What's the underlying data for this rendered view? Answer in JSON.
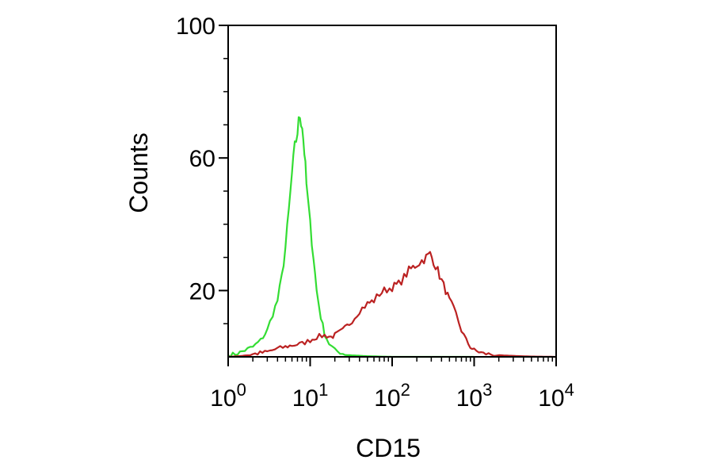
{
  "chart_data": {
    "type": "line",
    "title": "",
    "xlabel": "CD15",
    "ylabel": "Counts",
    "x_scale": "log",
    "xlim": [
      1,
      10000
    ],
    "ylim": [
      0,
      100
    ],
    "x_ticks": [
      {
        "base": "10",
        "exp": "0",
        "value": 1
      },
      {
        "base": "10",
        "exp": "1",
        "value": 10
      },
      {
        "base": "10",
        "exp": "2",
        "value": 100
      },
      {
        "base": "10",
        "exp": "3",
        "value": 1000
      },
      {
        "base": "10",
        "exp": "4",
        "value": 10000
      }
    ],
    "y_ticks": [
      {
        "label": "20",
        "value": 20
      },
      {
        "label": "60",
        "value": 60
      },
      {
        "label": "100",
        "value": 100
      }
    ],
    "grid": false,
    "legend": "none",
    "series": [
      {
        "color": "#33dd33",
        "points": [
          [
            1.0,
            0.5
          ],
          [
            1.3,
            1
          ],
          [
            1.6,
            2
          ],
          [
            2.0,
            3
          ],
          [
            2.5,
            5
          ],
          [
            3.0,
            8
          ],
          [
            3.5,
            13
          ],
          [
            4.0,
            17
          ],
          [
            4.5,
            24
          ],
          [
            5.0,
            33
          ],
          [
            5.5,
            44
          ],
          [
            6.0,
            55
          ],
          [
            6.5,
            63
          ],
          [
            7.0,
            68
          ],
          [
            7.5,
            73
          ],
          [
            8.0,
            70
          ],
          [
            8.5,
            62
          ],
          [
            9.0,
            52
          ],
          [
            10.0,
            40
          ],
          [
            11.0,
            30
          ],
          [
            12.0,
            20
          ],
          [
            13.5,
            12
          ],
          [
            15.0,
            7
          ],
          [
            17.0,
            4
          ],
          [
            20.0,
            2
          ],
          [
            25.0,
            1
          ],
          [
            30.0,
            0.5
          ],
          [
            50.0,
            0.2
          ],
          [
            100.0,
            0
          ],
          [
            1000.0,
            0
          ]
        ]
      },
      {
        "color": "#bb2222",
        "points": [
          [
            1.0,
            0
          ],
          [
            1.5,
            0.3
          ],
          [
            2.0,
            0.8
          ],
          [
            3.0,
            1.5
          ],
          [
            4.0,
            2.5
          ],
          [
            5.0,
            3
          ],
          [
            6.0,
            3.5
          ],
          [
            8.0,
            4
          ],
          [
            10.0,
            5
          ],
          [
            12.0,
            6
          ],
          [
            15.0,
            6.5
          ],
          [
            18.0,
            6
          ],
          [
            20.0,
            6.5
          ],
          [
            25.0,
            8
          ],
          [
            30.0,
            10
          ],
          [
            35.0,
            12
          ],
          [
            40.0,
            14
          ],
          [
            50.0,
            16
          ],
          [
            60.0,
            17
          ],
          [
            70.0,
            19
          ],
          [
            80.0,
            20
          ],
          [
            100.0,
            21
          ],
          [
            120.0,
            22
          ],
          [
            140.0,
            24
          ],
          [
            160.0,
            26
          ],
          [
            180.0,
            27
          ],
          [
            200.0,
            28
          ],
          [
            230.0,
            29
          ],
          [
            260.0,
            30
          ],
          [
            290.0,
            31
          ],
          [
            320.0,
            29
          ],
          [
            360.0,
            26
          ],
          [
            400.0,
            23
          ],
          [
            450.0,
            20
          ],
          [
            500.0,
            17
          ],
          [
            600.0,
            13
          ],
          [
            700.0,
            8
          ],
          [
            800.0,
            5
          ],
          [
            900.0,
            3
          ],
          [
            1000.0,
            2
          ],
          [
            1300.0,
            1
          ],
          [
            2000.0,
            0.5
          ],
          [
            3000.0,
            0.3
          ],
          [
            5000.0,
            0.1
          ],
          [
            10000.0,
            0
          ]
        ]
      }
    ]
  }
}
